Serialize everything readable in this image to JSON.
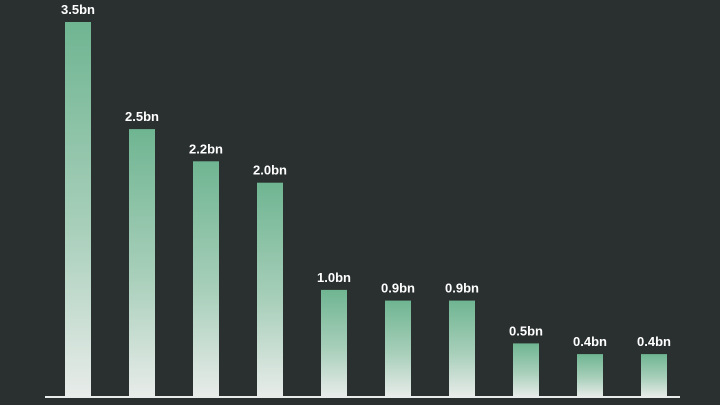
{
  "colors": {
    "background": "#2a3030",
    "bar_top": "#6fb592",
    "bar_bottom": "#e8ecea",
    "baseline": "#e8ecea",
    "label": "#ffffff"
  },
  "chart_data": {
    "type": "bar",
    "title": "",
    "xlabel": "",
    "ylabel": "",
    "grid": false,
    "legend": "none",
    "unit_suffix": "bn",
    "ylim": [
      0,
      3.5
    ],
    "values": [
      3.5,
      2.5,
      2.2,
      2.0,
      1.0,
      0.9,
      0.9,
      0.5,
      0.4,
      0.4
    ],
    "data_labels": [
      "3.5bn",
      "2.5bn",
      "2.2bn",
      "2.0bn",
      "1.0bn",
      "0.9bn",
      "0.9bn",
      "0.5bn",
      "0.4bn",
      "0.4bn"
    ]
  }
}
